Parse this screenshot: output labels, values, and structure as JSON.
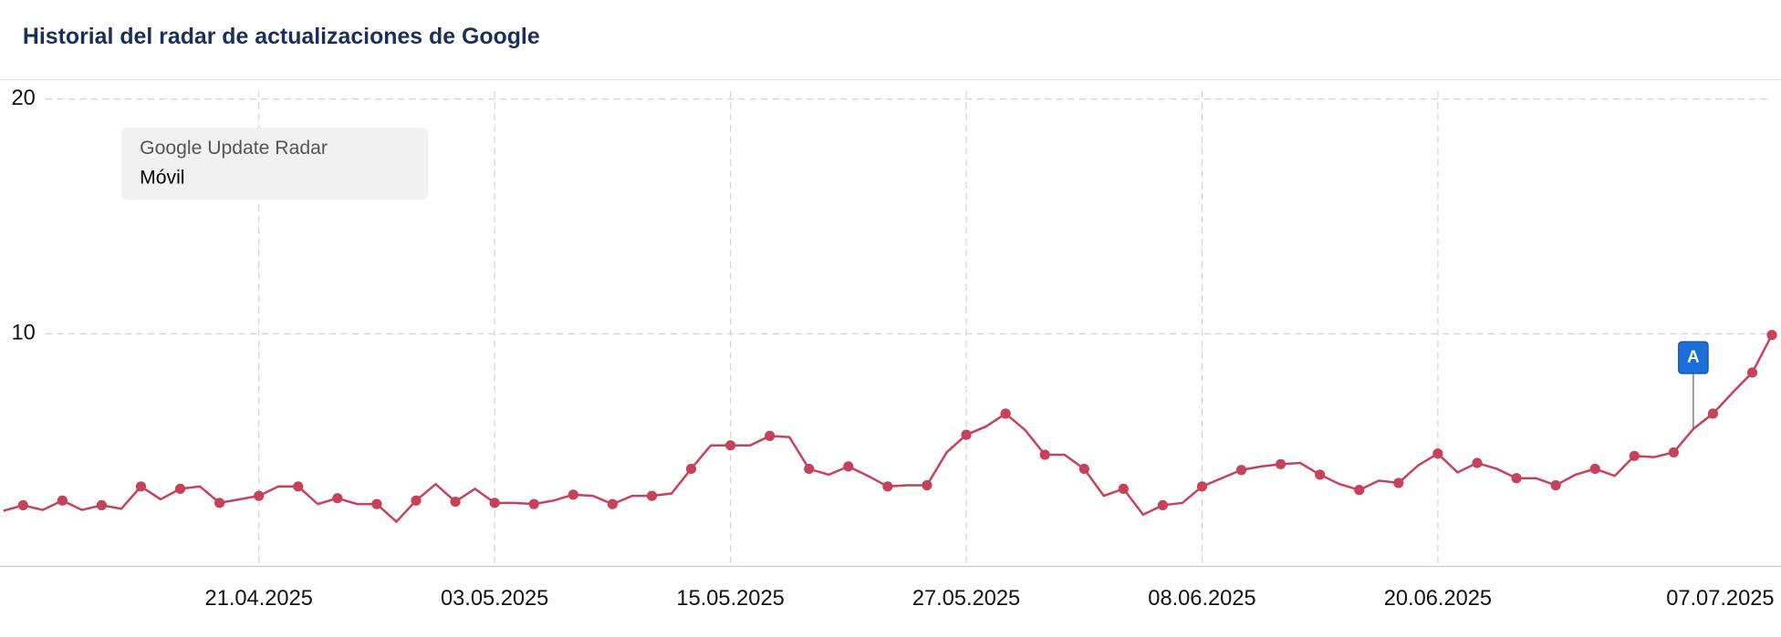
{
  "chart_data": {
    "type": "line",
    "title": "Historial del radar de actualizaciones de Google",
    "legend_title": "Google Update Radar",
    "categories": [
      null,
      null,
      null,
      null,
      null,
      null,
      null,
      null,
      null,
      null,
      null,
      null,
      null,
      "21.04.2025",
      null,
      null,
      null,
      null,
      null,
      null,
      null,
      null,
      null,
      null,
      null,
      "03.05.2025",
      null,
      null,
      null,
      null,
      null,
      null,
      null,
      null,
      null,
      null,
      null,
      "15.05.2025",
      null,
      null,
      null,
      null,
      null,
      null,
      null,
      null,
      null,
      null,
      null,
      "27.05.2025",
      null,
      null,
      null,
      null,
      null,
      null,
      null,
      null,
      null,
      null,
      null,
      "08.06.2025",
      null,
      null,
      null,
      null,
      null,
      null,
      null,
      null,
      null,
      null,
      null,
      "20.06.2025",
      null,
      null,
      null,
      null,
      null,
      null,
      null,
      null,
      null,
      null,
      null,
      null,
      null,
      null,
      null,
      null,
      "07.07.2025"
    ],
    "series": [
      {
        "name": "Móvil",
        "color": "#c8415a",
        "values": [
          2.46,
          2.7,
          2.5,
          2.9,
          2.5,
          2.7,
          2.55,
          3.5,
          2.95,
          3.4,
          3.5,
          2.8,
          2.95,
          3.1,
          3.5,
          3.5,
          2.75,
          3.0,
          2.75,
          2.75,
          2.0,
          2.9,
          3.6,
          2.85,
          3.4,
          2.8,
          2.8,
          2.75,
          2.9,
          3.15,
          3.1,
          2.75,
          3.1,
          3.1,
          3.2,
          4.25,
          5.25,
          5.25,
          5.25,
          5.65,
          5.6,
          4.25,
          4.0,
          4.35,
          3.95,
          3.5,
          3.55,
          3.55,
          4.95,
          5.7,
          6.05,
          6.6,
          5.9,
          4.85,
          4.85,
          4.25,
          3.1,
          3.4,
          2.3,
          2.7,
          2.8,
          3.5,
          3.85,
          4.2,
          4.35,
          4.45,
          4.5,
          4.0,
          3.6,
          3.35,
          3.75,
          3.65,
          4.4,
          4.9,
          4.1,
          4.5,
          4.25,
          3.85,
          3.85,
          3.55,
          4.0,
          4.25,
          3.95,
          4.8,
          4.75,
          4.95,
          5.95,
          6.6,
          7.5,
          8.35,
          9.95
        ]
      }
    ],
    "ylim": [
      0,
      20
    ],
    "yticks": [
      10,
      20
    ],
    "grid": true,
    "annotations": [
      {
        "text": "A",
        "index": 86
      }
    ]
  }
}
